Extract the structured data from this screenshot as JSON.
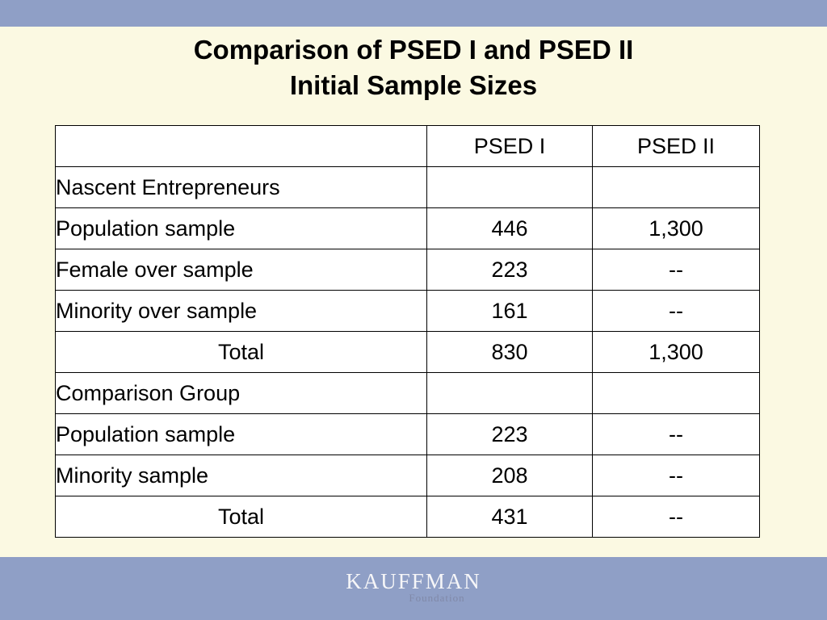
{
  "slide": {
    "title_line1": "Comparison of PSED I and PSED II",
    "title_line2": "Initial Sample Sizes"
  },
  "table": {
    "header": [
      "",
      "PSED I",
      "PSED II"
    ],
    "rows": [
      {
        "label": "Nascent Entrepreneurs",
        "psed1": "",
        "psed2": ""
      },
      {
        "label": "Population sample",
        "psed1": "446",
        "psed2": "1,300"
      },
      {
        "label": "Female over sample",
        "psed1": "223",
        "psed2": "--"
      },
      {
        "label": "Minority over sample",
        "psed1": "161",
        "psed2": "--"
      },
      {
        "label": "Total",
        "psed1": "830",
        "psed2": "1,300"
      },
      {
        "label": "Comparison Group",
        "psed1": "",
        "psed2": ""
      },
      {
        "label": "Population sample",
        "psed1": "223",
        "psed2": "--"
      },
      {
        "label": "Minority sample",
        "psed1": "208",
        "psed2": "--"
      },
      {
        "label": "Total",
        "psed1": "431",
        "psed2": "--"
      }
    ]
  },
  "logo": {
    "name": "KAUFFMAN",
    "sub": "Foundation"
  },
  "colors": {
    "background": "#fbf9e2",
    "band": "#8f9fc6"
  }
}
